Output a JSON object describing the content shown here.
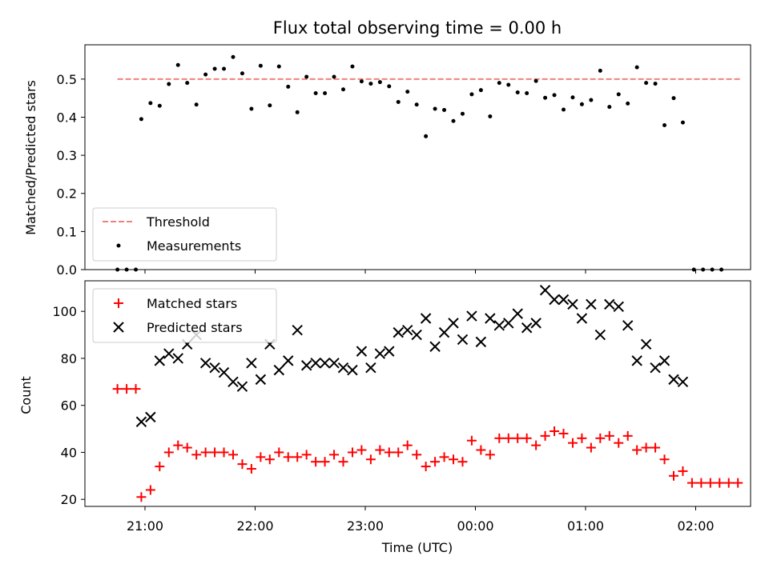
{
  "chart_data": [
    {
      "type": "scatter",
      "title": "Flux total observing time = 0.00 h",
      "xlabel": "",
      "ylabel": "Matched/Predicted stars",
      "ylim": [
        0,
        0.59
      ],
      "yticks": [
        "0.0",
        "0.1",
        "0.2",
        "0.3",
        "0.4",
        "0.5"
      ],
      "legend_position": "lower-left",
      "threshold": {
        "name": "Threshold",
        "value": 0.5,
        "x_start": "20:45",
        "x_end": "02:25",
        "color": "#f08080"
      },
      "series": [
        {
          "name": "Measurements",
          "color": "#000000",
          "marker": "dot",
          "points": [
            [
              "20:45",
              0.0
            ],
            [
              "20:50",
              0.0
            ],
            [
              "20:55",
              0.0
            ],
            [
              "20:58",
              0.395
            ],
            [
              "21:03",
              0.437
            ],
            [
              "21:08",
              0.43
            ],
            [
              "21:13",
              0.487
            ],
            [
              "21:18",
              0.537
            ],
            [
              "21:23",
              0.49
            ],
            [
              "21:28",
              0.433
            ],
            [
              "21:33",
              0.512
            ],
            [
              "21:38",
              0.527
            ],
            [
              "21:43",
              0.527
            ],
            [
              "21:48",
              0.558
            ],
            [
              "21:53",
              0.515
            ],
            [
              "21:58",
              0.422
            ],
            [
              "22:03",
              0.535
            ],
            [
              "22:08",
              0.431
            ],
            [
              "22:13",
              0.533
            ],
            [
              "22:18",
              0.48
            ],
            [
              "22:23",
              0.413
            ],
            [
              "22:28",
              0.506
            ],
            [
              "22:33",
              0.463
            ],
            [
              "22:38",
              0.463
            ],
            [
              "22:43",
              0.506
            ],
            [
              "22:48",
              0.473
            ],
            [
              "22:53",
              0.533
            ],
            [
              "22:58",
              0.494
            ],
            [
              "23:03",
              0.488
            ],
            [
              "23:08",
              0.492
            ],
            [
              "23:13",
              0.481
            ],
            [
              "23:18",
              0.44
            ],
            [
              "23:23",
              0.467
            ],
            [
              "23:28",
              0.433
            ],
            [
              "23:33",
              0.35
            ],
            [
              "23:38",
              0.422
            ],
            [
              "23:43",
              0.419
            ],
            [
              "23:48",
              0.39
            ],
            [
              "23:53",
              0.409
            ],
            [
              "23:58",
              0.46
            ],
            [
              "00:03",
              0.471
            ],
            [
              "00:08",
              0.402
            ],
            [
              "00:13",
              0.49
            ],
            [
              "00:18",
              0.485
            ],
            [
              "00:23",
              0.465
            ],
            [
              "00:28",
              0.463
            ],
            [
              "00:33",
              0.495
            ],
            [
              "00:38",
              0.451
            ],
            [
              "00:43",
              0.458
            ],
            [
              "00:48",
              0.42
            ],
            [
              "00:53",
              0.452
            ],
            [
              "00:58",
              0.434
            ],
            [
              "01:03",
              0.445
            ],
            [
              "01:08",
              0.522
            ],
            [
              "01:13",
              0.427
            ],
            [
              "01:18",
              0.46
            ],
            [
              "01:23",
              0.436
            ],
            [
              "01:28",
              0.531
            ],
            [
              "01:33",
              0.49
            ],
            [
              "01:38",
              0.488
            ],
            [
              "01:43",
              0.379
            ],
            [
              "01:48",
              0.45
            ],
            [
              "01:53",
              0.386
            ],
            [
              "01:59",
              0.0
            ],
            [
              "02:04",
              0.0
            ],
            [
              "02:09",
              0.0
            ],
            [
              "02:14",
              0.0
            ]
          ]
        }
      ]
    },
    {
      "type": "scatter",
      "title": "",
      "xlabel": "Time (UTC)",
      "ylabel": "Count",
      "ylim": [
        17,
        113
      ],
      "yticks": [
        "20",
        "40",
        "60",
        "80",
        "100"
      ],
      "xticks": [
        "21:00",
        "22:00",
        "23:00",
        "00:00",
        "01:00",
        "02:00"
      ],
      "legend_position": "upper-left",
      "series": [
        {
          "name": "Matched stars",
          "color": "#ff0000",
          "marker": "plus",
          "points": [
            [
              "20:45",
              67
            ],
            [
              "20:50",
              67
            ],
            [
              "20:55",
              67
            ],
            [
              "20:58",
              21
            ],
            [
              "21:03",
              24
            ],
            [
              "21:08",
              34
            ],
            [
              "21:13",
              40
            ],
            [
              "21:18",
              43
            ],
            [
              "21:23",
              42
            ],
            [
              "21:28",
              39
            ],
            [
              "21:33",
              40
            ],
            [
              "21:38",
              40
            ],
            [
              "21:43",
              40
            ],
            [
              "21:48",
              39
            ],
            [
              "21:53",
              35
            ],
            [
              "21:58",
              33
            ],
            [
              "22:03",
              38
            ],
            [
              "22:08",
              37
            ],
            [
              "22:13",
              40
            ],
            [
              "22:18",
              38
            ],
            [
              "22:23",
              38
            ],
            [
              "22:28",
              39
            ],
            [
              "22:33",
              36
            ],
            [
              "22:38",
              36
            ],
            [
              "22:43",
              39
            ],
            [
              "22:48",
              36
            ],
            [
              "22:53",
              40
            ],
            [
              "22:58",
              41
            ],
            [
              "23:03",
              37
            ],
            [
              "23:08",
              41
            ],
            [
              "23:13",
              40
            ],
            [
              "23:18",
              40
            ],
            [
              "23:23",
              43
            ],
            [
              "23:28",
              39
            ],
            [
              "23:33",
              34
            ],
            [
              "23:38",
              36
            ],
            [
              "23:43",
              38
            ],
            [
              "23:48",
              37
            ],
            [
              "23:53",
              36
            ],
            [
              "23:58",
              45
            ],
            [
              "00:03",
              41
            ],
            [
              "00:08",
              39
            ],
            [
              "00:13",
              46
            ],
            [
              "00:18",
              46
            ],
            [
              "00:23",
              46
            ],
            [
              "00:28",
              46
            ],
            [
              "00:33",
              43
            ],
            [
              "00:38",
              47
            ],
            [
              "00:43",
              49
            ],
            [
              "00:48",
              48
            ],
            [
              "00:53",
              44
            ],
            [
              "00:58",
              46
            ],
            [
              "01:03",
              42
            ],
            [
              "01:08",
              46
            ],
            [
              "01:13",
              47
            ],
            [
              "01:18",
              44
            ],
            [
              "01:23",
              47
            ],
            [
              "01:28",
              41
            ],
            [
              "01:33",
              42
            ],
            [
              "01:38",
              42
            ],
            [
              "01:43",
              37
            ],
            [
              "01:48",
              30
            ],
            [
              "01:53",
              32
            ],
            [
              "01:58",
              27
            ],
            [
              "02:03",
              27
            ],
            [
              "02:08",
              27
            ],
            [
              "02:13",
              27
            ],
            [
              "02:18",
              27
            ],
            [
              "02:23",
              27
            ]
          ]
        },
        {
          "name": "Predicted stars",
          "color": "#000000",
          "marker": "x",
          "points": [
            [
              "20:58",
              53
            ],
            [
              "21:03",
              55
            ],
            [
              "21:08",
              79
            ],
            [
              "21:13",
              82
            ],
            [
              "21:18",
              80
            ],
            [
              "21:23",
              86
            ],
            [
              "21:28",
              90
            ],
            [
              "21:33",
              78
            ],
            [
              "21:38",
              76
            ],
            [
              "21:43",
              74
            ],
            [
              "21:48",
              70
            ],
            [
              "21:53",
              68
            ],
            [
              "21:58",
              78
            ],
            [
              "22:03",
              71
            ],
            [
              "22:08",
              86
            ],
            [
              "22:13",
              75
            ],
            [
              "22:18",
              79
            ],
            [
              "22:23",
              92
            ],
            [
              "22:28",
              77
            ],
            [
              "22:33",
              78
            ],
            [
              "22:38",
              78
            ],
            [
              "22:43",
              78
            ],
            [
              "22:48",
              76
            ],
            [
              "22:53",
              75
            ],
            [
              "22:58",
              83
            ],
            [
              "23:03",
              76
            ],
            [
              "23:08",
              82
            ],
            [
              "23:13",
              83
            ],
            [
              "23:18",
              91
            ],
            [
              "23:23",
              92
            ],
            [
              "23:28",
              90
            ],
            [
              "23:33",
              97
            ],
            [
              "23:38",
              85
            ],
            [
              "23:43",
              91
            ],
            [
              "23:48",
              95
            ],
            [
              "23:53",
              88
            ],
            [
              "23:58",
              98
            ],
            [
              "00:03",
              87
            ],
            [
              "00:08",
              97
            ],
            [
              "00:13",
              94
            ],
            [
              "00:18",
              95
            ],
            [
              "00:23",
              99
            ],
            [
              "00:28",
              93
            ],
            [
              "00:33",
              95
            ],
            [
              "00:38",
              109
            ],
            [
              "00:43",
              105
            ],
            [
              "00:48",
              105
            ],
            [
              "00:53",
              103
            ],
            [
              "00:58",
              97
            ],
            [
              "01:03",
              103
            ],
            [
              "01:08",
              90
            ],
            [
              "01:13",
              103
            ],
            [
              "01:18",
              102
            ],
            [
              "01:23",
              94
            ],
            [
              "01:28",
              79
            ],
            [
              "01:33",
              86
            ],
            [
              "01:38",
              76
            ],
            [
              "01:43",
              79
            ],
            [
              "01:48",
              71
            ],
            [
              "01:53",
              70
            ]
          ]
        }
      ]
    }
  ]
}
